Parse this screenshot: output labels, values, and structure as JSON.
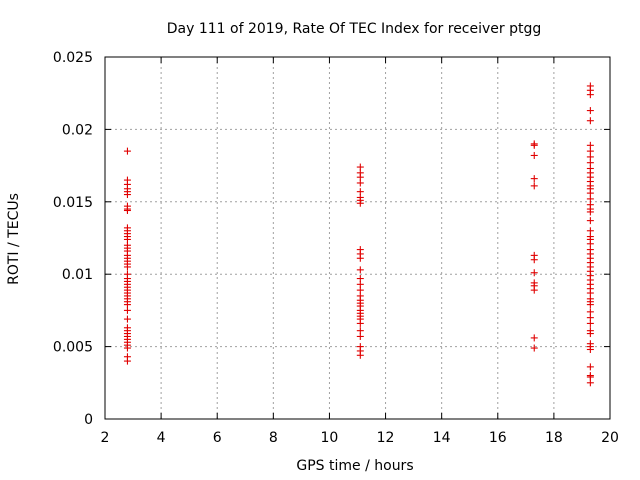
{
  "chart_data": {
    "type": "scatter",
    "title": "Day 111 of 2019, Rate Of TEC Index for receiver ptgg",
    "xlabel": "GPS time / hours",
    "ylabel": "ROTI / TECUs",
    "xlim": [
      2,
      20
    ],
    "ylim": [
      0,
      0.025
    ],
    "xticks": [
      2,
      4,
      6,
      8,
      10,
      12,
      14,
      16,
      18,
      20
    ],
    "xtick_labels": [
      "2",
      "4",
      "6",
      "8",
      "10",
      "12",
      "14",
      "16",
      "18",
      "20"
    ],
    "yticks": [
      0,
      0.005,
      0.01,
      0.015,
      0.02,
      0.025
    ],
    "ytick_labels": [
      "0",
      "0.005",
      "0.01",
      "0.015",
      "0.02",
      "0.025"
    ],
    "grid": true,
    "marker": "+",
    "color": "#e00000",
    "series": [
      {
        "name": "ROTI",
        "points": [
          [
            2.8,
            0.0185
          ],
          [
            2.8,
            0.0165
          ],
          [
            2.8,
            0.0162
          ],
          [
            2.8,
            0.0159
          ],
          [
            2.8,
            0.0157
          ],
          [
            2.8,
            0.0155
          ],
          [
            2.8,
            0.0147
          ],
          [
            2.8,
            0.0145
          ],
          [
            2.8,
            0.0144
          ],
          [
            2.8,
            0.0132
          ],
          [
            2.8,
            0.013
          ],
          [
            2.8,
            0.0128
          ],
          [
            2.8,
            0.0126
          ],
          [
            2.8,
            0.0124
          ],
          [
            2.8,
            0.012
          ],
          [
            2.8,
            0.0118
          ],
          [
            2.8,
            0.0116
          ],
          [
            2.8,
            0.0113
          ],
          [
            2.8,
            0.0111
          ],
          [
            2.8,
            0.0109
          ],
          [
            2.8,
            0.0107
          ],
          [
            2.8,
            0.0105
          ],
          [
            2.8,
            0.01
          ],
          [
            2.8,
            0.0097
          ],
          [
            2.8,
            0.0095
          ],
          [
            2.8,
            0.0093
          ],
          [
            2.8,
            0.0091
          ],
          [
            2.8,
            0.0089
          ],
          [
            2.8,
            0.0087
          ],
          [
            2.8,
            0.0085
          ],
          [
            2.8,
            0.0083
          ],
          [
            2.8,
            0.0081
          ],
          [
            2.8,
            0.0079
          ],
          [
            2.8,
            0.0075
          ],
          [
            2.8,
            0.0069
          ],
          [
            2.8,
            0.0063
          ],
          [
            2.8,
            0.0061
          ],
          [
            2.8,
            0.0059
          ],
          [
            2.8,
            0.0057
          ],
          [
            2.8,
            0.0055
          ],
          [
            2.8,
            0.0053
          ],
          [
            2.8,
            0.0051
          ],
          [
            2.8,
            0.0049
          ],
          [
            2.8,
            0.0043
          ],
          [
            2.8,
            0.004
          ],
          [
            11.1,
            0.0174
          ],
          [
            11.1,
            0.017
          ],
          [
            11.1,
            0.0167
          ],
          [
            11.1,
            0.0163
          ],
          [
            11.1,
            0.0157
          ],
          [
            11.1,
            0.0153
          ],
          [
            11.1,
            0.0151
          ],
          [
            11.1,
            0.0149
          ],
          [
            11.1,
            0.0117
          ],
          [
            11.1,
            0.0114
          ],
          [
            11.1,
            0.0111
          ],
          [
            11.1,
            0.0103
          ],
          [
            11.1,
            0.0097
          ],
          [
            11.1,
            0.0093
          ],
          [
            11.1,
            0.0089
          ],
          [
            11.1,
            0.0085
          ],
          [
            11.1,
            0.0082
          ],
          [
            11.1,
            0.008
          ],
          [
            11.1,
            0.0078
          ],
          [
            11.1,
            0.0075
          ],
          [
            11.1,
            0.0073
          ],
          [
            11.1,
            0.0071
          ],
          [
            11.1,
            0.0069
          ],
          [
            11.1,
            0.0066
          ],
          [
            11.1,
            0.0061
          ],
          [
            11.1,
            0.0057
          ],
          [
            11.1,
            0.005
          ],
          [
            11.1,
            0.0047
          ],
          [
            11.1,
            0.0044
          ],
          [
            17.3,
            0.019
          ],
          [
            17.3,
            0.0189
          ],
          [
            17.3,
            0.0182
          ],
          [
            17.3,
            0.0166
          ],
          [
            17.3,
            0.0161
          ],
          [
            17.3,
            0.0113
          ],
          [
            17.3,
            0.011
          ],
          [
            17.3,
            0.0101
          ],
          [
            17.3,
            0.0094
          ],
          [
            17.3,
            0.0092
          ],
          [
            17.3,
            0.0089
          ],
          [
            17.3,
            0.0056
          ],
          [
            17.3,
            0.0049
          ],
          [
            19.3,
            0.023
          ],
          [
            19.3,
            0.0227
          ],
          [
            19.3,
            0.0224
          ],
          [
            19.3,
            0.0213
          ],
          [
            19.3,
            0.0206
          ],
          [
            19.3,
            0.0189
          ],
          [
            19.3,
            0.0185
          ],
          [
            19.3,
            0.0181
          ],
          [
            19.3,
            0.0177
          ],
          [
            19.3,
            0.0173
          ],
          [
            19.3,
            0.017
          ],
          [
            19.3,
            0.0167
          ],
          [
            19.3,
            0.0164
          ],
          [
            19.3,
            0.0161
          ],
          [
            19.3,
            0.0159
          ],
          [
            19.3,
            0.0156
          ],
          [
            19.3,
            0.0152
          ],
          [
            19.3,
            0.0148
          ],
          [
            19.3,
            0.0145
          ],
          [
            19.3,
            0.0143
          ],
          [
            19.3,
            0.0137
          ],
          [
            19.3,
            0.013
          ],
          [
            19.3,
            0.0126
          ],
          [
            19.3,
            0.0124
          ],
          [
            19.3,
            0.0121
          ],
          [
            19.3,
            0.0117
          ],
          [
            19.3,
            0.0114
          ],
          [
            19.3,
            0.0111
          ],
          [
            19.3,
            0.0108
          ],
          [
            19.3,
            0.0105
          ],
          [
            19.3,
            0.0102
          ],
          [
            19.3,
            0.0099
          ],
          [
            19.3,
            0.0096
          ],
          [
            19.3,
            0.0093
          ],
          [
            19.3,
            0.009
          ],
          [
            19.3,
            0.0087
          ],
          [
            19.3,
            0.0083
          ],
          [
            19.3,
            0.0081
          ],
          [
            19.3,
            0.0079
          ],
          [
            19.3,
            0.0074
          ],
          [
            19.3,
            0.007
          ],
          [
            19.3,
            0.0066
          ],
          [
            19.3,
            0.0061
          ],
          [
            19.3,
            0.0059
          ],
          [
            19.3,
            0.0052
          ],
          [
            19.3,
            0.005
          ],
          [
            19.3,
            0.0048
          ],
          [
            19.3,
            0.0036
          ],
          [
            19.3,
            0.003
          ],
          [
            19.3,
            0.0029
          ],
          [
            19.3,
            0.0025
          ]
        ]
      }
    ]
  }
}
